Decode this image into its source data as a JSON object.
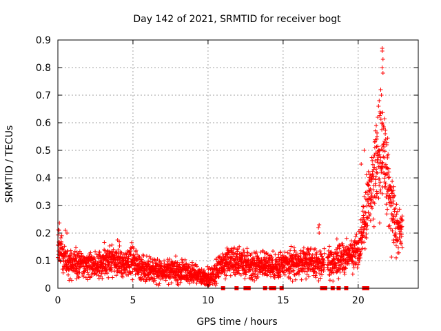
{
  "chart_data": {
    "type": "scatter",
    "title": "Day 142 of 2021, SRMTID for receiver bogt",
    "xlabel": "GPS time / hours",
    "ylabel": "SRMTID / TECUs",
    "xlim": [
      0,
      24
    ],
    "ylim": [
      0,
      0.9
    ],
    "xticks": [
      0,
      5,
      10,
      15,
      20
    ],
    "yticks": [
      0,
      0.1,
      0.2,
      0.3,
      0.4,
      0.5,
      0.6,
      0.7,
      0.8,
      0.9
    ],
    "marker": "plus",
    "series_color": "#ff0000",
    "trend": [
      [
        0.0,
        0.17
      ],
      [
        0.3,
        0.12
      ],
      [
        0.6,
        0.1
      ],
      [
        1.0,
        0.09
      ],
      [
        1.5,
        0.085
      ],
      [
        2.0,
        0.09
      ],
      [
        2.5,
        0.085
      ],
      [
        3.0,
        0.09
      ],
      [
        3.5,
        0.1
      ],
      [
        4.0,
        0.1
      ],
      [
        4.5,
        0.095
      ],
      [
        5.0,
        0.1
      ],
      [
        5.5,
        0.08
      ],
      [
        6.0,
        0.07
      ],
      [
        6.5,
        0.065
      ],
      [
        7.0,
        0.06
      ],
      [
        7.5,
        0.065
      ],
      [
        8.0,
        0.06
      ],
      [
        8.5,
        0.055
      ],
      [
        9.0,
        0.05
      ],
      [
        9.5,
        0.04
      ],
      [
        10.0,
        0.035
      ],
      [
        10.5,
        0.05
      ],
      [
        10.9,
        0.08
      ],
      [
        11.4,
        0.095
      ],
      [
        11.8,
        0.1
      ],
      [
        12.3,
        0.09
      ],
      [
        12.7,
        0.085
      ],
      [
        13.0,
        0.08
      ],
      [
        13.5,
        0.085
      ],
      [
        14.0,
        0.08
      ],
      [
        14.3,
        0.08
      ],
      [
        14.6,
        0.075
      ],
      [
        15.0,
        0.085
      ],
      [
        15.5,
        0.09
      ],
      [
        16.0,
        0.09
      ],
      [
        16.5,
        0.095
      ],
      [
        17.0,
        0.09
      ],
      [
        17.5,
        0.09
      ],
      [
        18.0,
        0.095
      ],
      [
        18.5,
        0.1
      ],
      [
        19.0,
        0.11
      ],
      [
        19.5,
        0.12
      ],
      [
        20.0,
        0.14
      ],
      [
        20.3,
        0.22
      ],
      [
        20.6,
        0.3
      ],
      [
        20.9,
        0.38
      ],
      [
        21.2,
        0.42
      ],
      [
        21.4,
        0.45
      ],
      [
        21.6,
        0.5
      ],
      [
        21.8,
        0.46
      ],
      [
        22.0,
        0.38
      ],
      [
        22.2,
        0.3
      ],
      [
        22.4,
        0.26
      ],
      [
        22.6,
        0.22
      ],
      [
        22.8,
        0.2
      ],
      [
        22.95,
        0.2
      ]
    ],
    "extra_points": [
      [
        21.6,
        0.87
      ],
      [
        21.6,
        0.86
      ],
      [
        21.65,
        0.83
      ],
      [
        21.6,
        0.8
      ],
      [
        21.65,
        0.78
      ],
      [
        21.5,
        0.72
      ],
      [
        21.55,
        0.7
      ],
      [
        21.4,
        0.68
      ],
      [
        21.35,
        0.66
      ],
      [
        21.45,
        0.64
      ],
      [
        21.3,
        0.62
      ],
      [
        21.6,
        0.6
      ],
      [
        21.7,
        0.58
      ],
      [
        21.2,
        0.59
      ],
      [
        21.25,
        0.55
      ],
      [
        21.8,
        0.56
      ],
      [
        21.9,
        0.52
      ],
      [
        21.95,
        0.48
      ],
      [
        21.1,
        0.53
      ],
      [
        20.2,
        0.45
      ],
      [
        20.4,
        0.5
      ],
      [
        20.9,
        0.4
      ],
      [
        17.4,
        0.23
      ],
      [
        17.35,
        0.22
      ],
      [
        17.4,
        0.2
      ],
      [
        0.5,
        0.21
      ],
      [
        0.6,
        0.2
      ]
    ],
    "gap_markers_x": [
      11.0,
      11.9,
      12.5,
      12.7,
      13.8,
      14.2,
      14.4,
      14.9,
      17.6,
      17.8,
      18.3,
      18.7,
      19.2,
      20.4,
      20.6
    ]
  }
}
